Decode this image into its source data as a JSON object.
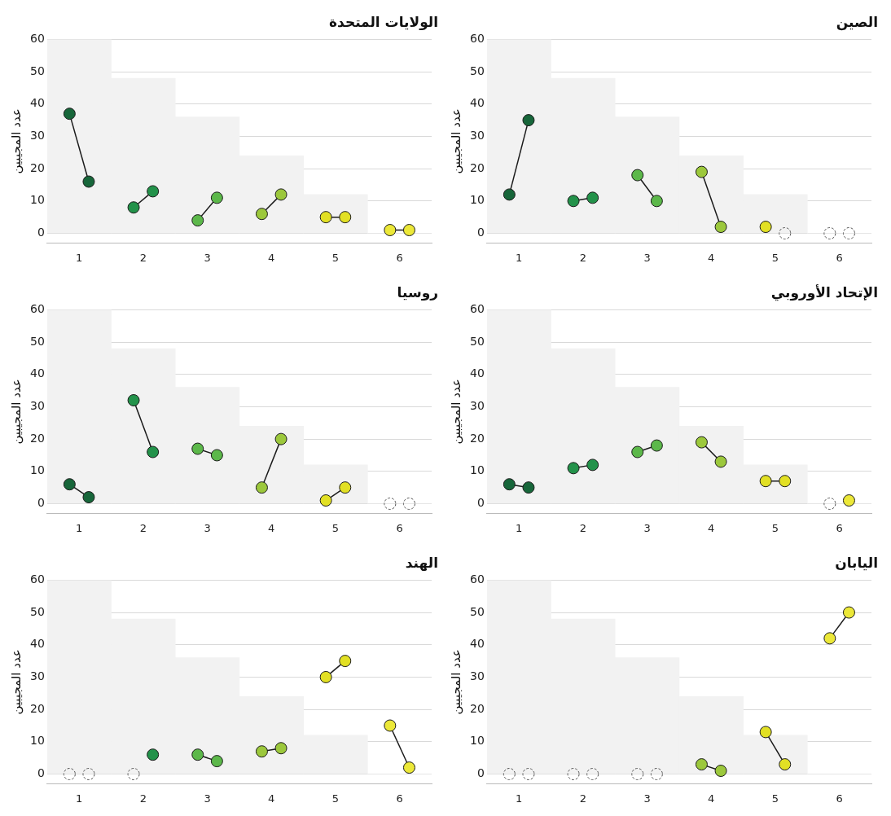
{
  "chart_data": [
    {
      "type": "line",
      "title": "الولايات المتحدة",
      "ylabel": "عدد المجيبين",
      "xlim": [
        0.5,
        6.5
      ],
      "xticks": [
        1,
        2,
        3,
        4,
        5,
        6
      ],
      "ylim": [
        -3,
        60
      ],
      "yticks": [
        0,
        10,
        20,
        30,
        40,
        50,
        60
      ],
      "grid": "y",
      "marker": "circle",
      "series": [
        {
          "type": "bar",
          "color": "#f2f2f2",
          "x": [
            1,
            2,
            3,
            4,
            5,
            6
          ],
          "values": [
            60,
            48,
            36,
            24,
            12,
            0
          ]
        },
        {
          "color": "#17663a",
          "x": [
            0.85,
            1.15
          ],
          "values": [
            37,
            16
          ]
        },
        {
          "color": "#23924a",
          "x": [
            1.85,
            2.15
          ],
          "values": [
            8,
            13
          ]
        },
        {
          "color": "#5cb84a",
          "x": [
            2.85,
            3.15
          ],
          "values": [
            4,
            11
          ]
        },
        {
          "color": "#9cc83c",
          "x": [
            3.85,
            4.15
          ],
          "values": [
            6,
            12
          ]
        },
        {
          "color": "#e2e024",
          "x": [
            4.85,
            5.15
          ],
          "values": [
            5,
            5
          ]
        },
        {
          "color": "#ece838",
          "x": [
            5.85,
            6.15
          ],
          "values": [
            1,
            1
          ]
        }
      ]
    },
    {
      "type": "line",
      "title": "الصين",
      "ylabel": "عدد المجيبين",
      "xlim": [
        0.5,
        6.5
      ],
      "xticks": [
        1,
        2,
        3,
        4,
        5,
        6
      ],
      "ylim": [
        -3,
        60
      ],
      "yticks": [
        0,
        10,
        20,
        30,
        40,
        50,
        60
      ],
      "grid": "y",
      "marker": "circle",
      "series": [
        {
          "type": "bar",
          "color": "#f2f2f2",
          "x": [
            1,
            2,
            3,
            4,
            5,
            6
          ],
          "values": [
            60,
            48,
            36,
            24,
            12,
            0
          ]
        },
        {
          "color": "#17663a",
          "x": [
            0.85,
            1.15
          ],
          "values": [
            12,
            35
          ]
        },
        {
          "color": "#23924a",
          "x": [
            1.85,
            2.15
          ],
          "values": [
            10,
            11
          ]
        },
        {
          "color": "#5cb84a",
          "x": [
            2.85,
            3.15
          ],
          "values": [
            18,
            10
          ]
        },
        {
          "color": "#9cc83c",
          "x": [
            3.85,
            4.15
          ],
          "values": [
            19,
            2
          ]
        },
        {
          "color": "#e2e024",
          "x": [
            4.85
          ],
          "values": [
            2
          ]
        },
        {
          "type": "scatter",
          "color": "#555555",
          "x": [
            5.15,
            5.85,
            6.15
          ],
          "values": [
            0,
            0,
            0
          ]
        }
      ]
    },
    {
      "type": "line",
      "title": "روسيا",
      "ylabel": "عدد المجيبين",
      "xlim": [
        0.5,
        6.5
      ],
      "xticks": [
        1,
        2,
        3,
        4,
        5,
        6
      ],
      "ylim": [
        -3,
        60
      ],
      "yticks": [
        0,
        10,
        20,
        30,
        40,
        50,
        60
      ],
      "grid": "y",
      "marker": "circle",
      "series": [
        {
          "type": "bar",
          "color": "#f2f2f2",
          "x": [
            1,
            2,
            3,
            4,
            5,
            6
          ],
          "values": [
            60,
            48,
            36,
            24,
            12,
            0
          ]
        },
        {
          "color": "#17663a",
          "x": [
            0.85,
            1.15
          ],
          "values": [
            6,
            2
          ]
        },
        {
          "color": "#23924a",
          "x": [
            1.85,
            2.15
          ],
          "values": [
            32,
            16
          ]
        },
        {
          "color": "#5cb84a",
          "x": [
            2.85,
            3.15
          ],
          "values": [
            17,
            15
          ]
        },
        {
          "color": "#9cc83c",
          "x": [
            3.85,
            4.15
          ],
          "values": [
            5,
            20
          ]
        },
        {
          "color": "#e2e024",
          "x": [
            4.85,
            5.15
          ],
          "values": [
            1,
            5
          ]
        },
        {
          "type": "scatter",
          "color": "#555555",
          "x": [
            5.85,
            6.15
          ],
          "values": [
            0,
            0
          ]
        }
      ]
    },
    {
      "type": "line",
      "title": "الإتحاد الأوروبي",
      "ylabel": "عدد المجيبين",
      "xlim": [
        0.5,
        6.5
      ],
      "xticks": [
        1,
        2,
        3,
        4,
        5,
        6
      ],
      "ylim": [
        -3,
        60
      ],
      "yticks": [
        0,
        10,
        20,
        30,
        40,
        50,
        60
      ],
      "grid": "y",
      "marker": "circle",
      "series": [
        {
          "type": "bar",
          "color": "#f2f2f2",
          "x": [
            1,
            2,
            3,
            4,
            5,
            6
          ],
          "values": [
            60,
            48,
            36,
            24,
            12,
            0
          ]
        },
        {
          "color": "#17663a",
          "x": [
            0.85,
            1.15
          ],
          "values": [
            6,
            5
          ]
        },
        {
          "color": "#23924a",
          "x": [
            1.85,
            2.15
          ],
          "values": [
            11,
            12
          ]
        },
        {
          "color": "#5cb84a",
          "x": [
            2.85,
            3.15
          ],
          "values": [
            16,
            18
          ]
        },
        {
          "color": "#9cc83c",
          "x": [
            3.85,
            4.15
          ],
          "values": [
            19,
            13
          ]
        },
        {
          "color": "#e2e024",
          "x": [
            4.85,
            5.15
          ],
          "values": [
            7,
            7
          ]
        },
        {
          "color": "#ece838",
          "x": [
            6.15
          ],
          "values": [
            1
          ]
        },
        {
          "type": "scatter",
          "color": "#555555",
          "x": [
            5.85
          ],
          "values": [
            0
          ]
        }
      ]
    },
    {
      "type": "line",
      "title": "الهند",
      "ylabel": "عدد المجيبين",
      "xlim": [
        0.5,
        6.5
      ],
      "xticks": [
        1,
        2,
        3,
        4,
        5,
        6
      ],
      "ylim": [
        -3,
        60
      ],
      "yticks": [
        0,
        10,
        20,
        30,
        40,
        50,
        60
      ],
      "grid": "y",
      "marker": "circle",
      "series": [
        {
          "type": "bar",
          "color": "#f2f2f2",
          "x": [
            1,
            2,
            3,
            4,
            5,
            6
          ],
          "values": [
            60,
            48,
            36,
            24,
            12,
            0
          ]
        },
        {
          "color": "#23924a",
          "x": [
            2.15
          ],
          "values": [
            6
          ]
        },
        {
          "color": "#5cb84a",
          "x": [
            2.85,
            3.15
          ],
          "values": [
            6,
            4
          ]
        },
        {
          "color": "#9cc83c",
          "x": [
            3.85,
            4.15
          ],
          "values": [
            7,
            8
          ]
        },
        {
          "color": "#e2e024",
          "x": [
            4.85,
            5.15
          ],
          "values": [
            30,
            35
          ]
        },
        {
          "color": "#ece838",
          "x": [
            5.85,
            6.15
          ],
          "values": [
            15,
            2
          ]
        },
        {
          "type": "scatter",
          "color": "#555555",
          "x": [
            0.85,
            1.15,
            1.85
          ],
          "values": [
            0,
            0,
            0
          ]
        }
      ]
    },
    {
      "type": "line",
      "title": "اليابان",
      "ylabel": "عدد المجيبين",
      "xlim": [
        0.5,
        6.5
      ],
      "xticks": [
        1,
        2,
        3,
        4,
        5,
        6
      ],
      "ylim": [
        -3,
        60
      ],
      "yticks": [
        0,
        10,
        20,
        30,
        40,
        50,
        60
      ],
      "grid": "y",
      "marker": "circle",
      "series": [
        {
          "type": "bar",
          "color": "#f2f2f2",
          "x": [
            1,
            2,
            3,
            4,
            5,
            6
          ],
          "values": [
            60,
            48,
            36,
            24,
            12,
            0
          ]
        },
        {
          "color": "#9cc83c",
          "x": [
            3.85,
            4.15
          ],
          "values": [
            3,
            1
          ]
        },
        {
          "color": "#e2e024",
          "x": [
            4.85,
            5.15
          ],
          "values": [
            13,
            3
          ]
        },
        {
          "color": "#ece838",
          "x": [
            5.85,
            6.15
          ],
          "values": [
            42,
            50
          ]
        },
        {
          "type": "scatter",
          "color": "#555555",
          "x": [
            0.85,
            1.15,
            1.85,
            2.15,
            2.85,
            3.15
          ],
          "values": [
            0,
            0,
            0,
            0,
            0,
            0
          ]
        }
      ]
    }
  ]
}
